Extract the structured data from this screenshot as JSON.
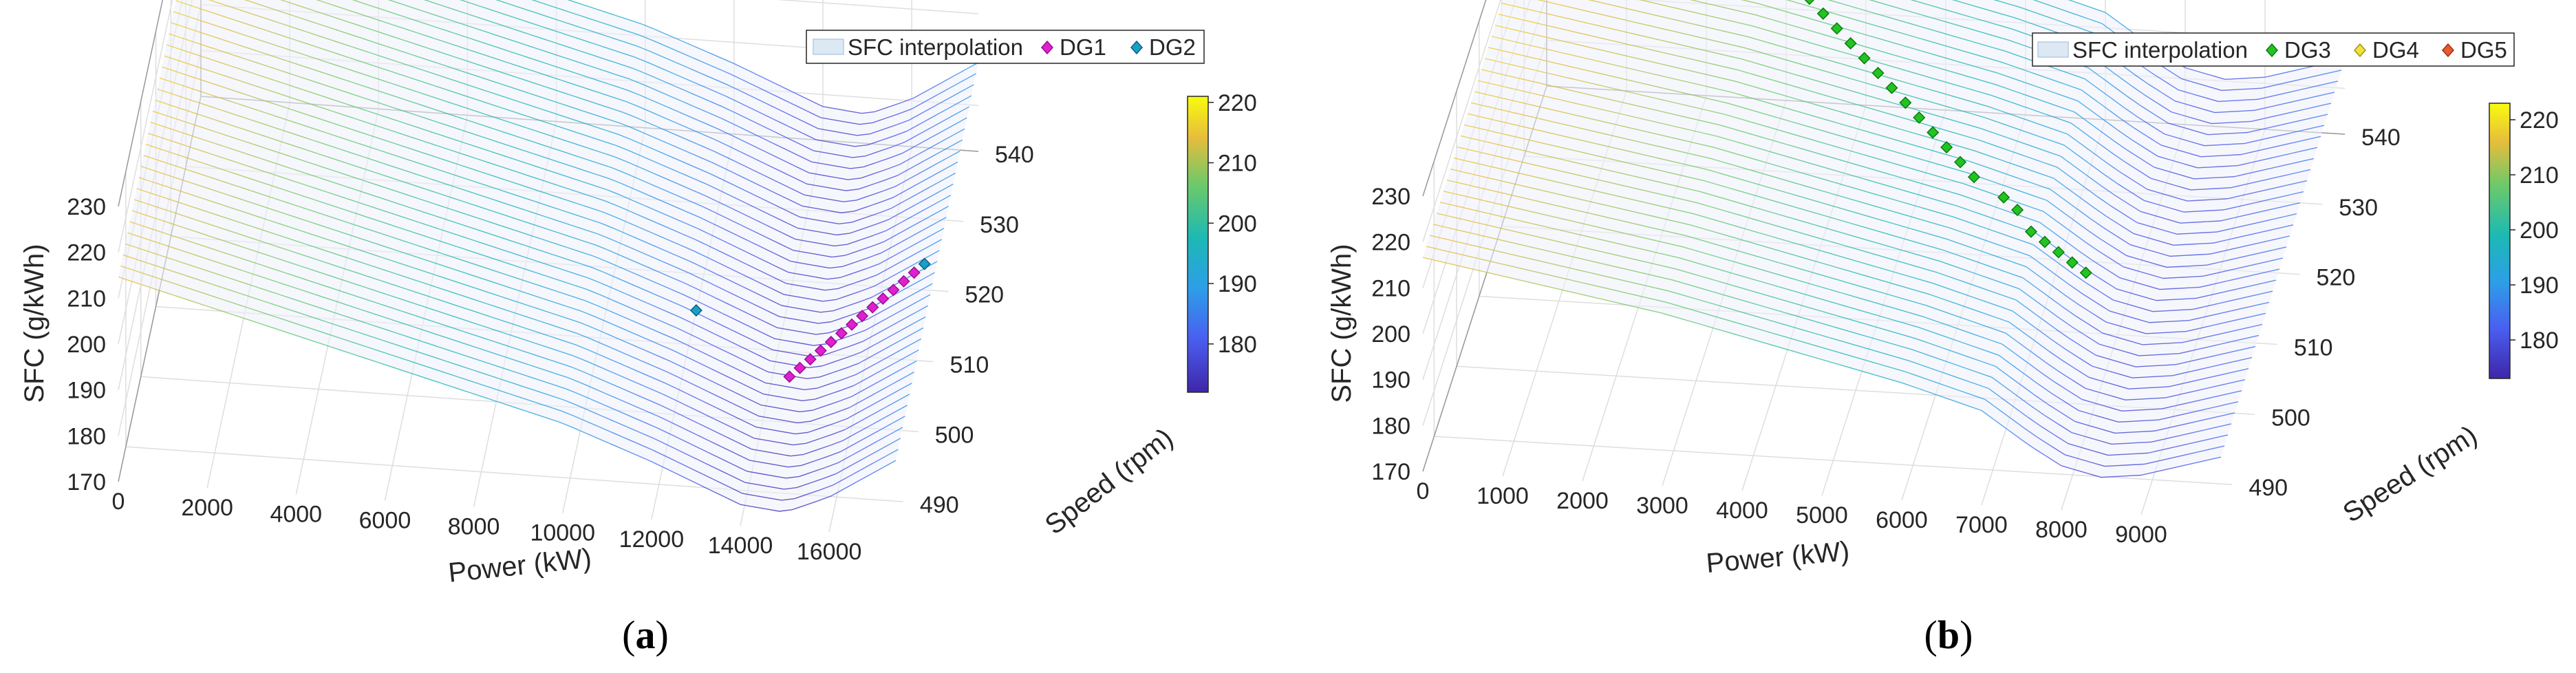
{
  "chart_data": [
    {
      "type": "surface3d",
      "panel_label": {
        "open": "(",
        "letter": "a",
        "close": ")"
      },
      "xlabel": "Power (kW)",
      "ylabel": "Speed (rpm)",
      "zlabel": "SFC (g/kWh)",
      "x_ticks": [
        "0",
        "2000",
        "4000",
        "6000",
        "8000",
        "10000",
        "12000",
        "14000",
        "16000"
      ],
      "y_ticks": [
        "490",
        "500",
        "510",
        "520",
        "530",
        "540"
      ],
      "z_ticks": [
        "170",
        "180",
        "190",
        "200",
        "210",
        "220",
        "230"
      ],
      "colorbar_ticks": [
        "180",
        "190",
        "200",
        "210",
        "220"
      ],
      "xlim": [
        0,
        17500
      ],
      "ylim": [
        485,
        540
      ],
      "zlim": [
        170,
        230
      ],
      "clim": [
        172,
        221
      ],
      "legend": [
        "SFC interpolation",
        "DG1",
        "DG2"
      ],
      "legend_colors": [
        "#dce9f5",
        "#e020d0",
        "#1aa0c8"
      ],
      "surface": {
        "sfc_at_power": [
          [
            0,
            216
          ],
          [
            2000,
            211
          ],
          [
            4000,
            206
          ],
          [
            6000,
            201
          ],
          [
            8000,
            196
          ],
          [
            10000,
            191
          ],
          [
            12000,
            184
          ],
          [
            13000,
            180
          ],
          [
            14000,
            176
          ],
          [
            15000,
            175
          ],
          [
            16000,
            179
          ],
          [
            17500,
            188
          ]
        ]
      },
      "series": [
        {
          "name": "DG1",
          "points": [
            [
              14600,
              500,
              180
            ],
            [
              14800,
              501,
              180.5
            ],
            [
              15000,
              502,
              181
            ],
            [
              15200,
              503,
              181.5
            ],
            [
              15400,
              504,
              182
            ],
            [
              15600,
              505,
              182.5
            ],
            [
              15800,
              506,
              183
            ],
            [
              16000,
              507,
              183.5
            ],
            [
              16200,
              508,
              184
            ],
            [
              16400,
              509,
              184.5
            ],
            [
              16600,
              510,
              185
            ],
            [
              16800,
              511,
              185.5
            ],
            [
              17000,
              512,
              186
            ]
          ]
        },
        {
          "name": "DG2",
          "points": [
            [
              12500,
              500,
              193
            ],
            [
              17200,
              513,
              186.5
            ]
          ]
        }
      ]
    },
    {
      "type": "surface3d",
      "panel_label": {
        "open": "(",
        "letter": "b",
        "close": ")"
      },
      "xlabel": "Power (kW)",
      "ylabel": "Speed (rpm)",
      "zlabel": "SFC (g/kWh)",
      "x_ticks": [
        "0",
        "1000",
        "2000",
        "3000",
        "4000",
        "5000",
        "6000",
        "7000",
        "8000",
        "9000"
      ],
      "y_ticks": [
        "490",
        "500",
        "510",
        "520",
        "530",
        "540"
      ],
      "z_ticks": [
        "170",
        "180",
        "190",
        "200",
        "210",
        "220",
        "230"
      ],
      "colorbar_ticks": [
        "180",
        "190",
        "200",
        "210",
        "220"
      ],
      "xlim": [
        0,
        10000
      ],
      "ylim": [
        485,
        540
      ],
      "zlim": [
        170,
        230
      ],
      "clim": [
        173,
        223
      ],
      "legend": [
        "SFC interpolation",
        "DG3",
        "DG4",
        "DG5"
      ],
      "legend_colors": [
        "#dce9f5",
        "#22c422",
        "#f0e040",
        "#e85a30"
      ],
      "surface": {
        "sfc_at_power": [
          [
            0,
            218
          ],
          [
            1000,
            215
          ],
          [
            2000,
            212
          ],
          [
            3000,
            209
          ],
          [
            4000,
            205
          ],
          [
            5000,
            201
          ],
          [
            6000,
            197
          ],
          [
            7000,
            192
          ],
          [
            7600,
            185
          ],
          [
            8000,
            181
          ],
          [
            8500,
            179
          ],
          [
            9000,
            180
          ],
          [
            10000,
            185
          ]
        ]
      },
      "series": [
        {
          "name": "DG3",
          "points": [
            [
              2800,
              527,
              228
            ],
            [
              3000,
              526,
              226.5
            ],
            [
              3200,
              525,
              225
            ],
            [
              3400,
              524,
              223.5
            ],
            [
              3600,
              523,
              222
            ],
            [
              3800,
              522,
              220.5
            ],
            [
              4000,
              521,
              219
            ],
            [
              4200,
              520,
              217.5
            ],
            [
              4400,
              519,
              216
            ],
            [
              4600,
              518,
              214.5
            ],
            [
              4800,
              517,
              213
            ],
            [
              5000,
              516,
              211.5
            ],
            [
              5200,
              515,
              210
            ],
            [
              5400,
              514,
              208.5
            ],
            [
              5600,
              513,
              207
            ],
            [
              5800,
              512,
              205.5
            ],
            [
              6000,
              511,
              204
            ],
            [
              6200,
              510,
              202.5
            ],
            [
              6600,
              509,
              200
            ],
            [
              6800,
              508,
              199
            ],
            [
              7000,
              507,
              196
            ],
            [
              7200,
              506,
              195.5
            ],
            [
              7400,
              505,
              195
            ],
            [
              7600,
              504,
              194.5
            ],
            [
              7800,
              503,
              194
            ]
          ]
        },
        {
          "name": "DG4",
          "points": []
        },
        {
          "name": "DG5",
          "points": []
        }
      ]
    }
  ]
}
